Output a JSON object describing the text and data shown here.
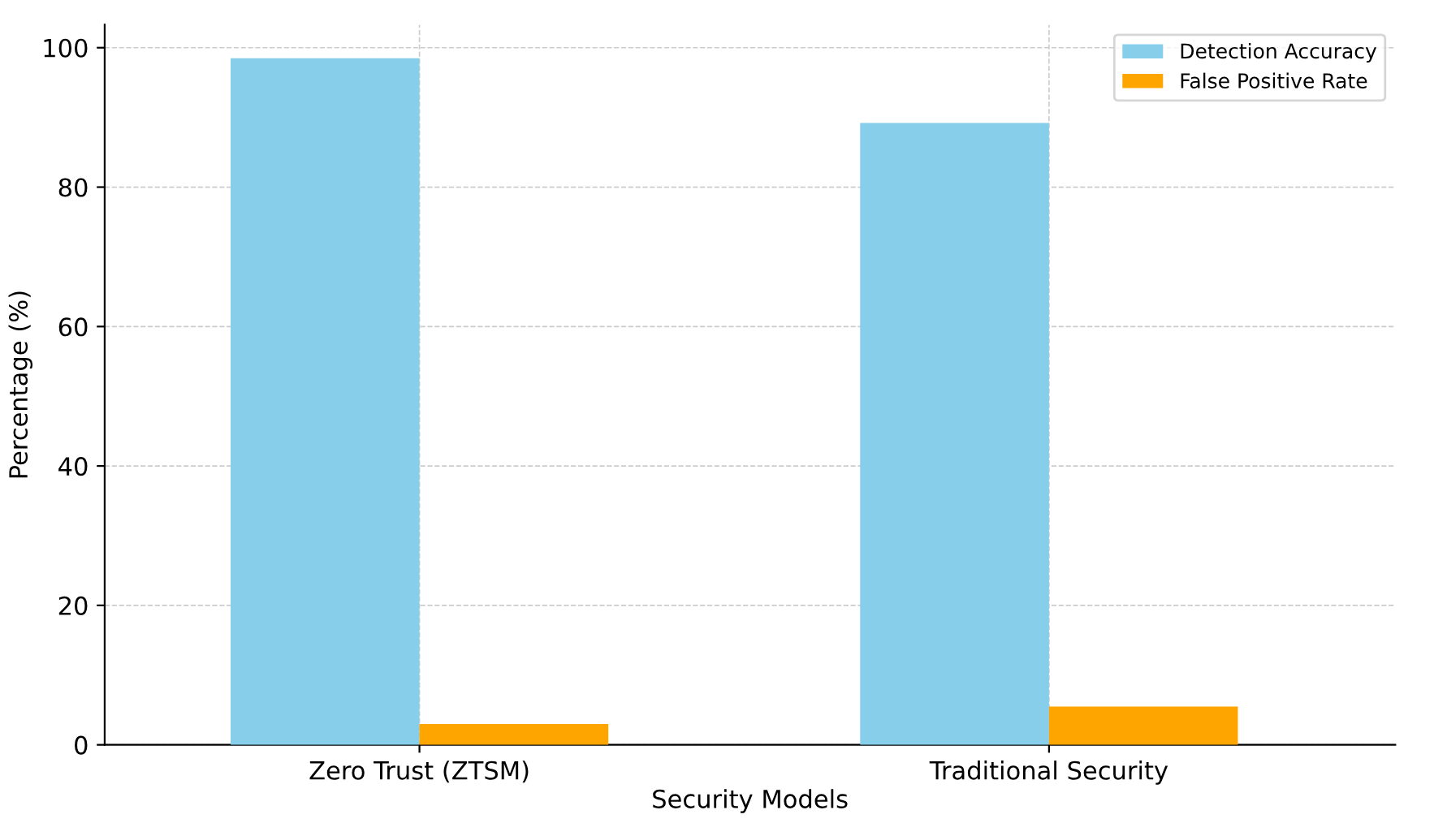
{
  "chart_data": {
    "type": "bar",
    "xlabel": "Security Models",
    "ylabel": "Percentage (%)",
    "categories": [
      "Zero Trust (ZTSM)",
      "Traditional Security"
    ],
    "series": [
      {
        "name": "Detection Accuracy",
        "color": "#87ceeb",
        "values": [
          98.5,
          89.2
        ]
      },
      {
        "name": "False Positive Rate",
        "color": "#ffa500",
        "values": [
          3,
          5.5
        ]
      }
    ],
    "ylim": [
      0,
      103.3
    ],
    "yticks": [
      0,
      20,
      40,
      60,
      80,
      100
    ],
    "grid": true,
    "legend": "top right"
  }
}
